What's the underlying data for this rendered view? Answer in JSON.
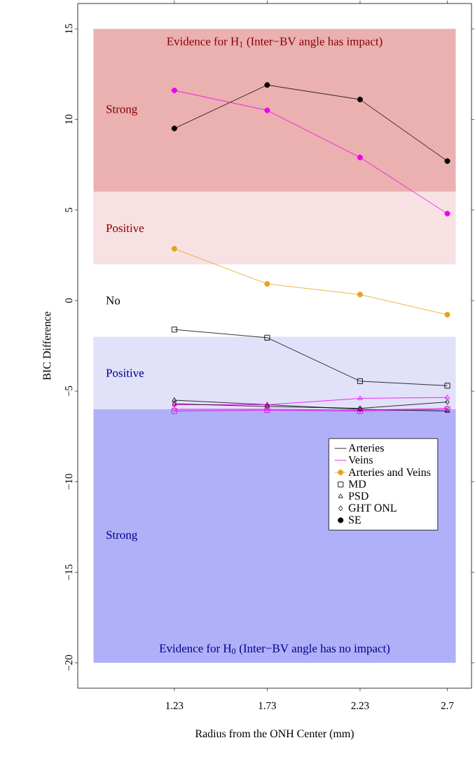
{
  "chart_data": {
    "type": "line",
    "xlabel": "Radius from the ONH Center (mm)",
    "ylabel": "BIC Difference",
    "x": [
      1.23,
      1.73,
      2.23,
      2.7
    ],
    "xlim": [
      0.71,
      2.83
    ],
    "xticks": [
      1.23,
      1.73,
      2.23,
      2.7
    ],
    "ylim": [
      -21.4,
      16.4
    ],
    "yticks": [
      {
        "value": -20,
        "label": "−20"
      },
      {
        "value": -15,
        "label": "−15"
      },
      {
        "value": -10,
        "label": "−10"
      },
      {
        "value": -5,
        "label": "−5"
      },
      0,
      5,
      10,
      15
    ],
    "legend": "right",
    "grid": false,
    "series": [
      {
        "name": "Arteries",
        "color": "#000000",
        "values": [
          null,
          null,
          null,
          null
        ],
        "marker": "none"
      },
      {
        "name": "Veins",
        "color": "#ee00ee",
        "values": [
          null,
          null,
          null,
          null
        ],
        "marker": "none"
      },
      {
        "name": "Arteries and Veins",
        "color": "#e8a020",
        "values": [
          2.86,
          0.92,
          0.33,
          -0.78
        ],
        "marker": "circle"
      },
      {
        "name": "MD",
        "type": "scatter",
        "color": "#000000",
        "values": [
          null,
          null,
          null,
          null
        ],
        "marker": "square"
      },
      {
        "name": "PSD",
        "type": "scatter",
        "color": "#000000",
        "values": [
          null,
          null,
          null,
          null
        ],
        "marker": "triangle"
      },
      {
        "name": "GHT ONL",
        "type": "scatter",
        "color": "#000000",
        "values": [
          null,
          null,
          null,
          null
        ],
        "marker": "diamond"
      },
      {
        "name": "SE",
        "type": "scatter",
        "color": "#000000",
        "values": [
          null,
          null,
          null,
          null
        ],
        "marker": "circle"
      },
      {
        "color": "#000000",
        "values": [
          9.5,
          11.9,
          11.1,
          7.7
        ],
        "marker": "circle"
      },
      {
        "color": "#ee00ee",
        "values": [
          11.6,
          10.5,
          7.9,
          4.8
        ],
        "marker": "circle"
      },
      {
        "color": "#000000",
        "values": [
          -1.6,
          -2.05,
          -4.45,
          -4.7
        ],
        "marker": "square"
      },
      {
        "color": "#ee00ee",
        "values": [
          -6.1,
          -6.05,
          -6.1,
          -6.0
        ],
        "marker": "square"
      },
      {
        "color": "#000000",
        "values": [
          -5.5,
          -5.75,
          -6.0,
          -6.1
        ],
        "marker": "triangle"
      },
      {
        "color": "#ee00ee",
        "values": [
          -5.75,
          -5.75,
          -5.4,
          -5.35
        ],
        "marker": "triangle"
      },
      {
        "color": "#000000",
        "values": [
          -5.7,
          -5.85,
          -5.95,
          -5.6
        ],
        "marker": "diamond"
      },
      {
        "color": "#ee00ee",
        "values": [
          -6.0,
          -6.0,
          -6.05,
          -5.95
        ],
        "marker": "diamond"
      }
    ],
    "bands": [
      {
        "axis": "y",
        "from": 6,
        "to": 15,
        "label": "Strong",
        "color": "#ebb0b0"
      },
      {
        "axis": "y",
        "from": 2,
        "to": 6,
        "label": "Positive",
        "color": "#f7e1e3"
      },
      {
        "axis": "y",
        "from": -6,
        "to": -2,
        "label": "Positive",
        "color": "#e1e1fa"
      },
      {
        "axis": "y",
        "from": -20,
        "to": -6,
        "label": "Strong",
        "color": "#b0b0f8"
      }
    ],
    "annotations": [
      "Evidence for H$_{1}$  (Inter−BV angle has impact)",
      "Evidence for H$_{0}$  (Inter−BV angle has no impact)",
      "No"
    ]
  }
}
